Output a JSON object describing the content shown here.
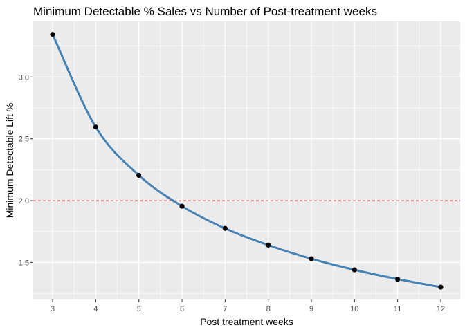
{
  "chart_data": {
    "type": "line",
    "title": "Minimum Detectable % Sales vs Number of Post-treatment weeks",
    "xlabel": "Post treatment weeks",
    "ylabel": "Minimum Detectable Lift %",
    "x": [
      3,
      4,
      5,
      6,
      7,
      8,
      9,
      10,
      11,
      12
    ],
    "y": [
      3.345,
      2.595,
      2.205,
      1.955,
      1.775,
      1.64,
      1.53,
      1.44,
      1.365,
      1.3
    ],
    "xticks": [
      3,
      4,
      5,
      6,
      7,
      8,
      9,
      10,
      11,
      12
    ],
    "yticks": [
      1.5,
      2.0,
      2.5,
      3.0
    ],
    "ytick_labels": [
      "1.5",
      "2.0",
      "2.5",
      "3.0"
    ],
    "xlim": [
      2.55,
      12.45
    ],
    "ylim": [
      1.2,
      3.45
    ],
    "reference_line": {
      "y": 2.0,
      "style": "dashed",
      "color": "#e03131"
    },
    "colors": {
      "line": "#4682b4",
      "points": "#000000",
      "panel_background": "#ebebeb",
      "grid": "#ffffff"
    },
    "grid": true,
    "legend": "none"
  }
}
